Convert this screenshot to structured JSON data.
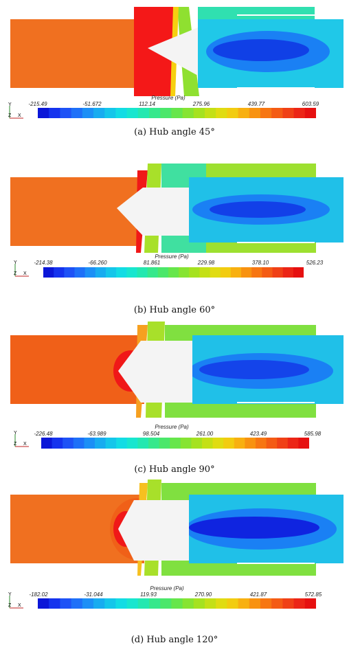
{
  "legend_title": "Pressure (Pa)",
  "axis_labels": {
    "y": "Y",
    "z": "Z",
    "x": "X"
  },
  "panels": [
    {
      "caption": "(a) Hub angle 45°",
      "ticks": [
        "-215.49",
        "-51.672",
        "112.14",
        "275.96",
        "439.77",
        "603.59"
      ]
    },
    {
      "caption": "(b) Hub angle 60°",
      "ticks": [
        "-214.38",
        "-66.260",
        "81.861",
        "229.98",
        "378.10",
        "526.23"
      ]
    },
    {
      "caption": "(c) Hub angle 90°",
      "ticks": [
        "-226.48",
        "-63.989",
        "98.504",
        "261.00",
        "423.49",
        "585.98"
      ]
    },
    {
      "caption": "(d) Hub angle 120°",
      "ticks": [
        "-182.02",
        "-31.044",
        "119.93",
        "270.90",
        "421.87",
        "572.85"
      ]
    }
  ],
  "colormap": [
    "#0b17d8",
    "#1533ee",
    "#1e52f6",
    "#1e70f8",
    "#1c8ff6",
    "#18acf0",
    "#15c6ea",
    "#13dce4",
    "#18e6cf",
    "#23e8b0",
    "#36e88c",
    "#4be76a",
    "#66e64b",
    "#86e432",
    "#a5e21f",
    "#c4e016",
    "#e0dc12",
    "#f2cc10",
    "#f8b010",
    "#f89210",
    "#f77612",
    "#f45b14",
    "#f04016",
    "#ec2516",
    "#e61010"
  ],
  "colors": {
    "high": "#f07020",
    "peak": "#f01818",
    "hub": "#f4f4f4"
  }
}
